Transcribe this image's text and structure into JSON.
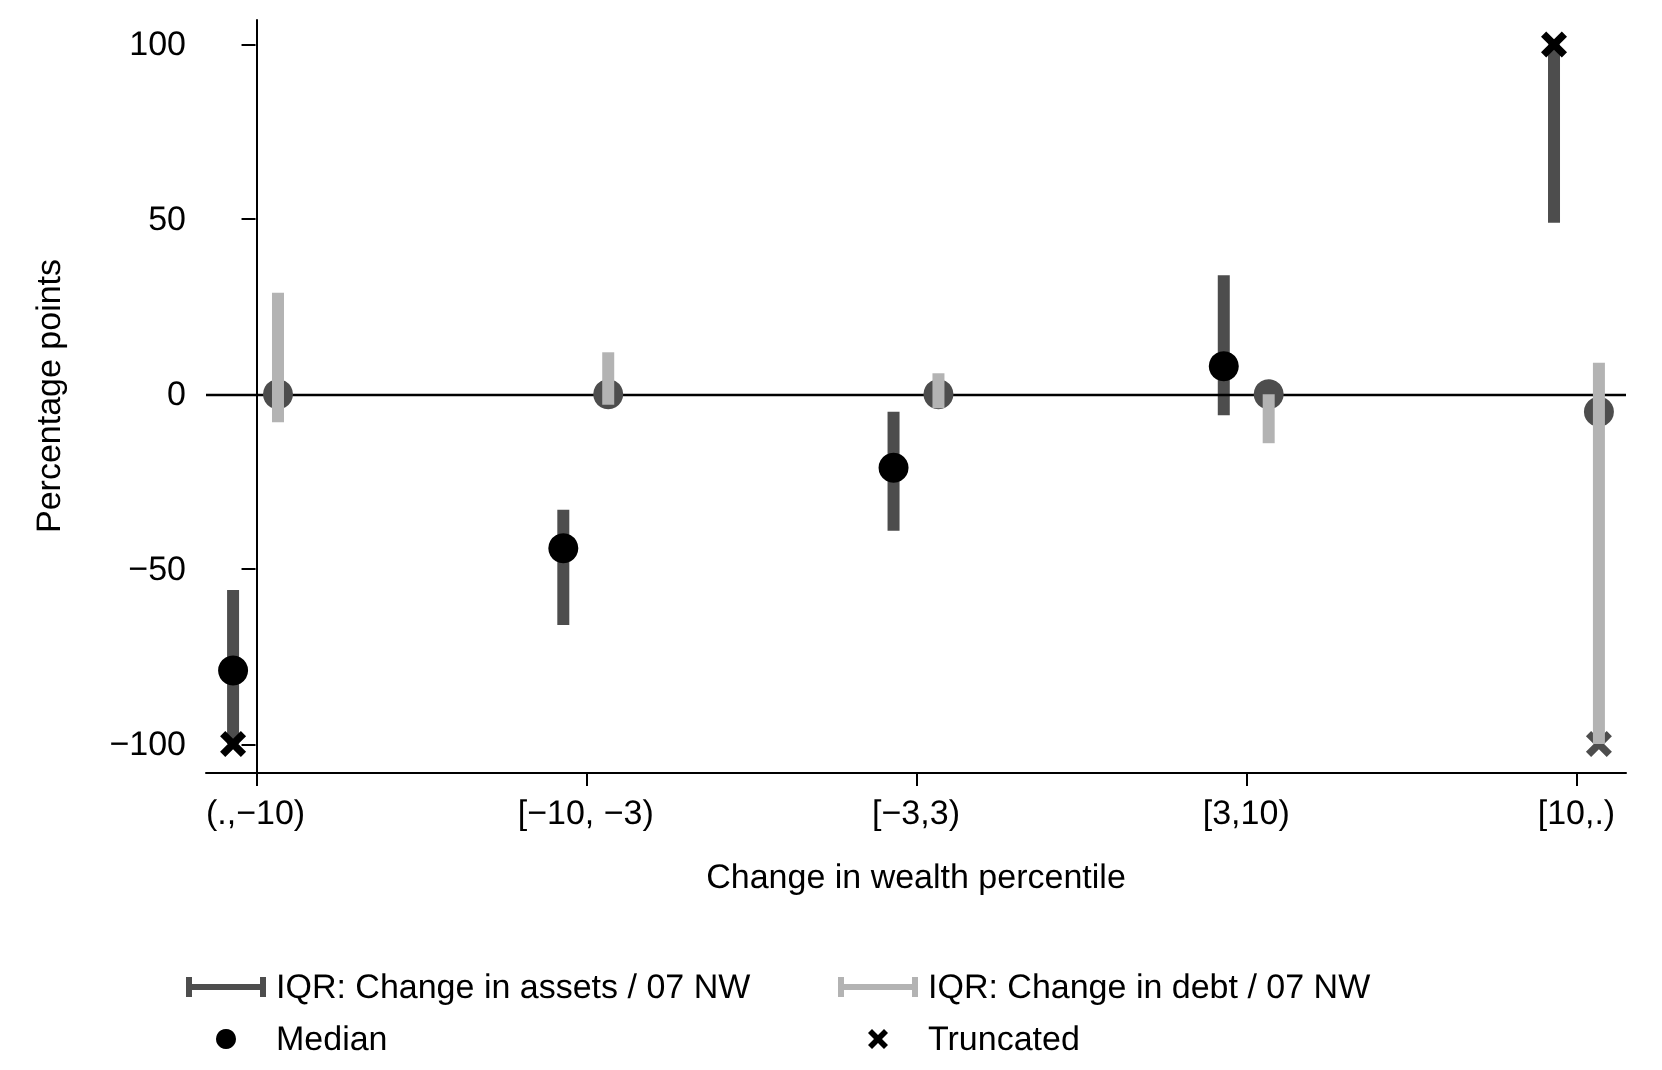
{
  "chart_data": {
    "type": "bar",
    "xlabel": "Change in wealth percentile",
    "ylabel": "Percentage points",
    "categories": [
      "(.,−10)",
      "[−10, −3)",
      "[−3,3)",
      "[3,10)",
      "[10,.)"
    ],
    "series": [
      {
        "name": "IQR: Change in assets / 07 NW",
        "color": "#4d4d4d",
        "base": [
          -100,
          -66,
          -39,
          -6,
          49
        ],
        "values": [
          44,
          33,
          34,
          40,
          51
        ]
      },
      {
        "name": "IQR: Change in debt / 07 NW",
        "color": "#b3b3b3",
        "base": [
          -8,
          -3,
          -4,
          -14,
          -100
        ],
        "values": [
          37,
          15,
          10,
          14,
          109
        ]
      },
      {
        "name": "Median",
        "type": "scatter",
        "marker": "circle",
        "color": "#000000",
        "values": [
          -79,
          -44,
          -21,
          8,
          null
        ]
      },
      {
        "type": "scatter",
        "marker": "circle",
        "color": "#4d4d4d",
        "values": [
          0,
          0,
          0,
          0,
          -5
        ]
      },
      {
        "name": "Truncated",
        "type": "scatter",
        "marker": "cross",
        "color": "#000000",
        "values": [
          -100,
          null,
          null,
          null,
          100
        ]
      },
      {
        "type": "scatter",
        "marker": "cross",
        "color": "#4d4d4d",
        "values": [
          null,
          null,
          null,
          null,
          -100
        ]
      }
    ],
    "ylim": [
      -108,
      107
    ],
    "yticks": [
      -100,
      -50,
      0,
      50,
      100
    ],
    "ref_lines": [
      {
        "axis": "y",
        "value": 0,
        "color": "#000000"
      }
    ],
    "legend": "bottom"
  }
}
